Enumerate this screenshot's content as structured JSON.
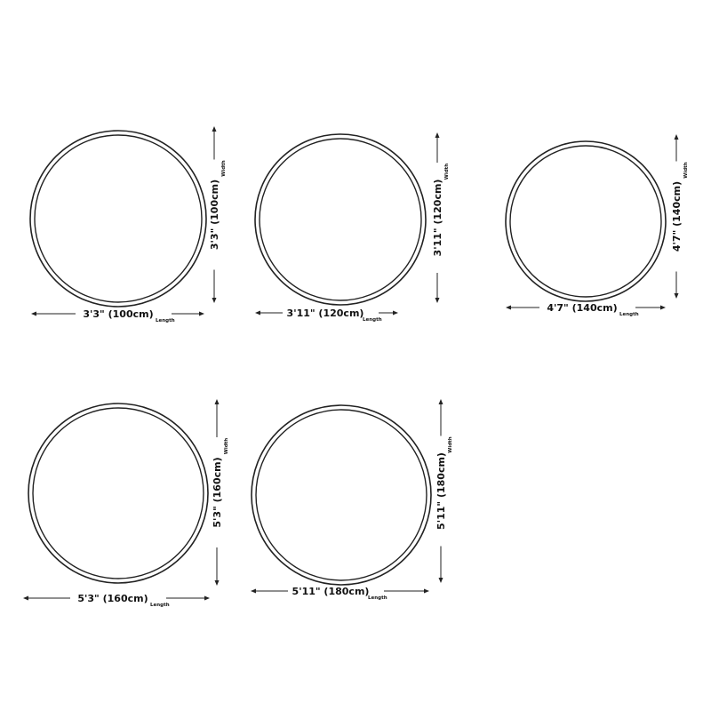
{
  "colors": {
    "line": "#222222",
    "background": "#ffffff"
  },
  "rugs": [
    {
      "length_label": "3'3\" (100cm)",
      "width_label": "3'3\" (100cm)",
      "length_word": "Length",
      "width_word": "Width"
    },
    {
      "length_label": "3'11\" (120cm)",
      "width_label": "3'11\" (120cm)",
      "length_word": "Length",
      "width_word": "Width"
    },
    {
      "length_label": "4'7\" (140cm)",
      "width_label": "4'7\" (140cm)",
      "length_word": "Length",
      "width_word": "Width"
    },
    {
      "length_label": "5'3\" (160cm)",
      "width_label": "5'3\" (160cm)",
      "length_word": "Length",
      "width_word": "Width"
    },
    {
      "length_label": "5'11\" (180cm)",
      "width_label": "5'11\" (180cm)",
      "length_word": "Length",
      "width_word": "Width"
    }
  ]
}
